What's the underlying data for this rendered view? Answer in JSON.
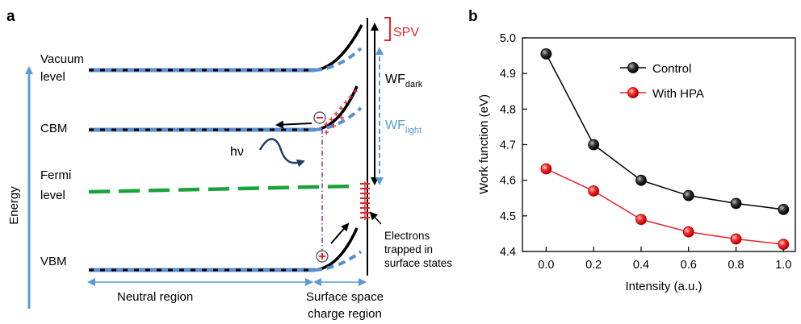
{
  "panel_a": {
    "label": "a",
    "energy_axis_label": "Energy",
    "vacuum_level": [
      "Vacuum",
      "level"
    ],
    "cbm": "CBM",
    "fermi_level": [
      "Fermi",
      "level"
    ],
    "vbm": "VBM",
    "photon": "hν",
    "spv": "SPV",
    "wf_dark": {
      "main": "WF",
      "sub": "dark"
    },
    "wf_light": {
      "main": "WF",
      "sub": "light"
    },
    "electrons_trapped": [
      "Electrons",
      "trapped in",
      "surface states"
    ],
    "neutral_region": "Neutral region",
    "space_charge_region": [
      "Surface space",
      "charge region"
    ],
    "colors": {
      "band_dark": "#000000",
      "band_light": "#5b8fd0",
      "fermi": "#1aa33a",
      "arrow": "#5b9bd5",
      "spv": "#e8242a",
      "dashdot": "#7a3a9a",
      "photon_wave": "#1f3d6b"
    }
  },
  "panel_b": {
    "label": "b",
    "colors": {
      "control": "#000000",
      "hpa": "#e8242a"
    }
  },
  "chart_data": {
    "type": "line",
    "xlabel": "Intensity (a.u.)",
    "ylabel": "Work function (eV)",
    "xlim": [
      -0.1,
      1.05
    ],
    "ylim": [
      4.4,
      5.0
    ],
    "x_ticks": [
      "0.0",
      "0.2",
      "0.4",
      "0.6",
      "0.8",
      "1.0"
    ],
    "y_ticks": [
      "4.4",
      "4.5",
      "4.6",
      "4.7",
      "4.8",
      "4.9",
      "5.0"
    ],
    "x": [
      0.0,
      0.2,
      0.4,
      0.6,
      0.8,
      1.0
    ],
    "series": [
      {
        "name": "Control",
        "values": [
          4.955,
          4.7,
          4.6,
          4.557,
          4.535,
          4.518
        ]
      },
      {
        "name": "With HPA",
        "values": [
          4.632,
          4.57,
          4.49,
          4.455,
          4.435,
          4.42
        ]
      }
    ],
    "legend": "top-right",
    "grid": false
  }
}
